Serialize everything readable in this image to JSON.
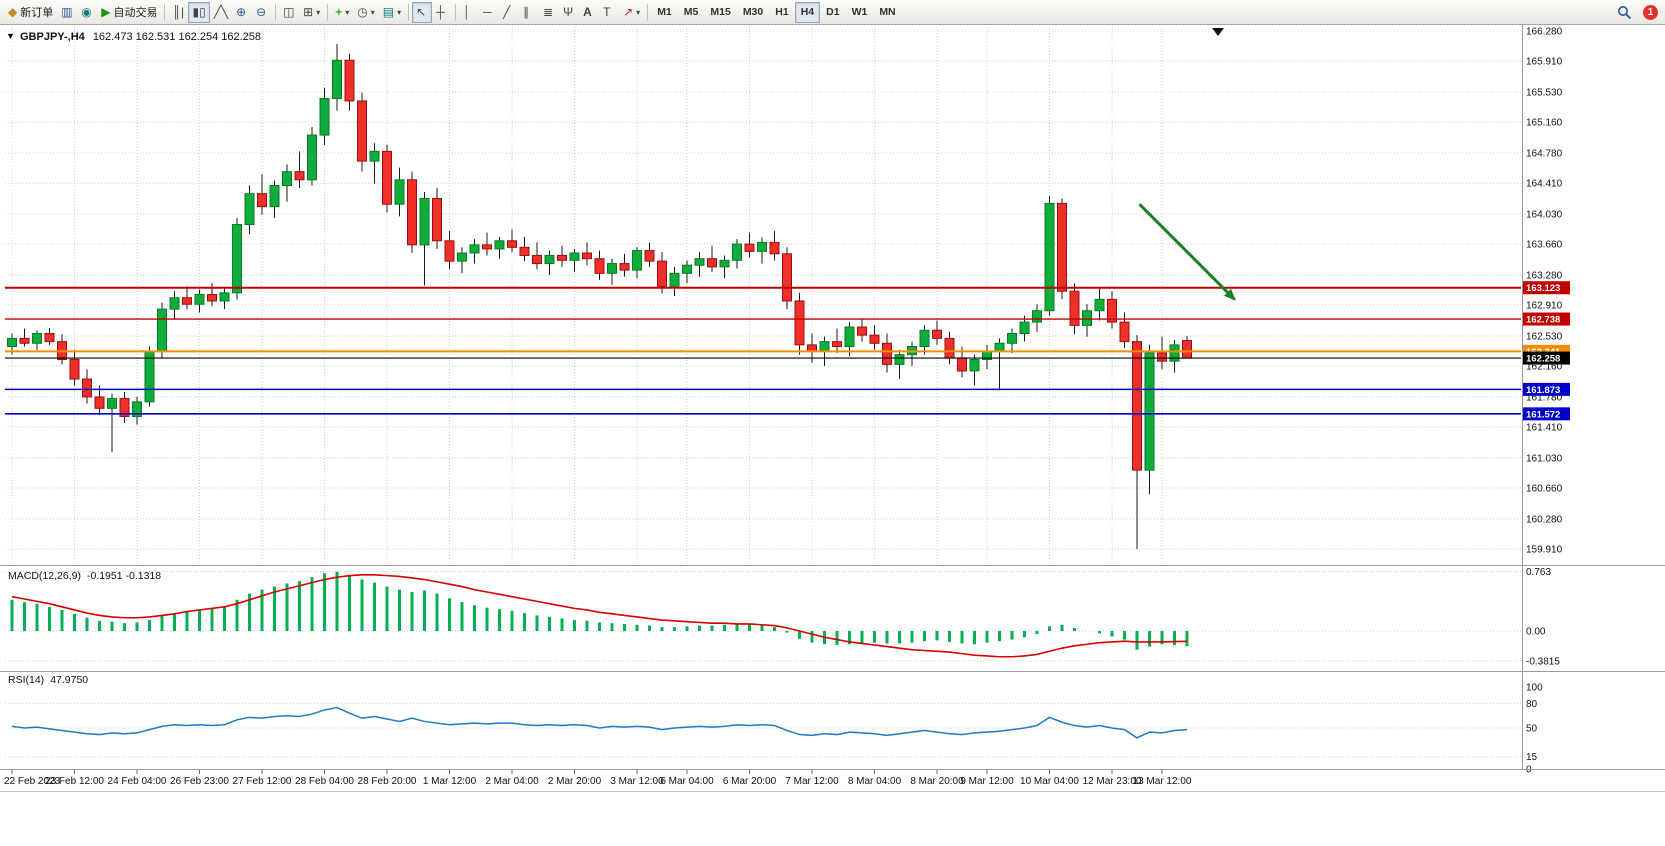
{
  "toolbar": {
    "new_order_label": "新订单",
    "autotrading_label": "自动交易",
    "timeframes": [
      "M1",
      "M5",
      "M15",
      "M30",
      "H1",
      "H4",
      "D1",
      "W1",
      "MN"
    ],
    "active_timeframe": "H4",
    "badge": "1"
  },
  "icons": {
    "caret-down": "▼",
    "dropdown": "▾",
    "coin": "◆",
    "chart-window": "▥",
    "terminal": "◉",
    "play": "▶",
    "bar-chart": "║|",
    "candlestick": "▮▯",
    "line-chart": "╱╲",
    "zoom-in": "⊕",
    "zoom-out": "⊖",
    "tile-windows": "◫",
    "new-chart": "⊞",
    "indicators": "+",
    "periods": "◷",
    "templates": "▤",
    "cursor": "↖",
    "crosshair": "┼",
    "vertical-line": "│",
    "horizontal-line": "─",
    "trendline": "╱",
    "channel": "∥",
    "fibonacci": "≣",
    "pitchfork": "Ψ",
    "text": "A",
    "text-label": "T",
    "arrows": "↗"
  },
  "chart": {
    "symbol_period": "GBPJPY-,H4",
    "quote_text": "162.473 162.531 162.254 162.258"
  },
  "chart_data": {
    "type": "candlestick",
    "symbol": "GBPJPY-",
    "timeframe": "H4",
    "ohlc_current": {
      "open": 162.473,
      "high": 162.531,
      "low": 162.254,
      "close": 162.258
    },
    "ylim": [
      159.91,
      166.28
    ],
    "price_axis_ticks": [
      "166.280",
      "165.910",
      "165.530",
      "165.160",
      "164.780",
      "164.410",
      "164.030",
      "163.660",
      "163.280",
      "162.910",
      "162.530",
      "162.160",
      "161.780",
      "161.410",
      "161.030",
      "160.660",
      "160.280",
      "159.910"
    ],
    "colors": {
      "up": "#0fae3c",
      "up_border": "#067a26",
      "down": "#ee2f2a",
      "down_border": "#9c0d0d",
      "wick": "#1a1a1a"
    },
    "candles": [
      [
        162.4,
        162.56,
        162.3,
        162.5
      ],
      [
        162.5,
        162.62,
        162.4,
        162.44
      ],
      [
        162.44,
        162.6,
        162.36,
        162.56
      ],
      [
        162.56,
        162.63,
        162.42,
        162.46
      ],
      [
        162.46,
        162.55,
        162.18,
        162.24
      ],
      [
        162.24,
        162.36,
        161.92,
        162.0
      ],
      [
        162.0,
        162.12,
        161.7,
        161.78
      ],
      [
        161.78,
        161.92,
        161.56,
        161.64
      ],
      [
        161.64,
        161.82,
        161.1,
        161.76
      ],
      [
        161.76,
        161.84,
        161.46,
        161.54
      ],
      [
        161.54,
        161.78,
        161.44,
        161.72
      ],
      [
        161.72,
        162.4,
        161.66,
        162.34
      ],
      [
        162.34,
        162.94,
        162.26,
        162.86
      ],
      [
        162.86,
        163.08,
        162.74,
        163.0
      ],
      [
        163.0,
        163.14,
        162.86,
        162.92
      ],
      [
        162.92,
        163.1,
        162.82,
        163.04
      ],
      [
        163.04,
        163.18,
        162.9,
        162.96
      ],
      [
        162.96,
        163.12,
        162.86,
        163.06
      ],
      [
        163.06,
        163.98,
        162.98,
        163.9
      ],
      [
        163.9,
        164.38,
        163.78,
        164.28
      ],
      [
        164.28,
        164.52,
        164.02,
        164.12
      ],
      [
        164.12,
        164.44,
        163.98,
        164.38
      ],
      [
        164.38,
        164.64,
        164.18,
        164.55
      ],
      [
        164.55,
        164.8,
        164.35,
        164.45
      ],
      [
        164.45,
        165.1,
        164.38,
        165.0
      ],
      [
        165.0,
        165.58,
        164.88,
        165.45
      ],
      [
        165.45,
        166.12,
        165.3,
        165.92
      ],
      [
        165.92,
        166.0,
        165.3,
        165.42
      ],
      [
        165.42,
        165.52,
        164.55,
        164.68
      ],
      [
        164.68,
        164.9,
        164.4,
        164.8
      ],
      [
        164.8,
        164.88,
        164.05,
        164.15
      ],
      [
        164.15,
        164.6,
        164.0,
        164.45
      ],
      [
        164.45,
        164.55,
        163.55,
        163.65
      ],
      [
        163.65,
        164.3,
        163.15,
        164.22
      ],
      [
        164.22,
        164.35,
        163.6,
        163.7
      ],
      [
        163.7,
        163.82,
        163.35,
        163.45
      ],
      [
        163.45,
        163.62,
        163.3,
        163.55
      ],
      [
        163.55,
        163.72,
        163.42,
        163.65
      ],
      [
        163.65,
        163.8,
        163.52,
        163.6
      ],
      [
        163.6,
        163.75,
        163.48,
        163.7
      ],
      [
        163.7,
        163.84,
        163.56,
        163.62
      ],
      [
        163.62,
        163.75,
        163.45,
        163.52
      ],
      [
        163.52,
        163.68,
        163.35,
        163.42
      ],
      [
        163.42,
        163.58,
        163.28,
        163.52
      ],
      [
        163.52,
        163.64,
        163.38,
        163.46
      ],
      [
        163.46,
        163.6,
        163.32,
        163.55
      ],
      [
        163.55,
        163.68,
        163.4,
        163.48
      ],
      [
        163.48,
        163.58,
        163.22,
        163.3
      ],
      [
        163.3,
        163.48,
        163.16,
        163.42
      ],
      [
        163.42,
        163.54,
        163.26,
        163.34
      ],
      [
        163.34,
        163.62,
        163.24,
        163.58
      ],
      [
        163.58,
        163.68,
        163.38,
        163.45
      ],
      [
        163.45,
        163.56,
        163.05,
        163.14
      ],
      [
        163.14,
        163.38,
        163.02,
        163.3
      ],
      [
        163.3,
        163.46,
        163.18,
        163.4
      ],
      [
        163.4,
        163.56,
        163.26,
        163.48
      ],
      [
        163.48,
        163.64,
        163.32,
        163.38
      ],
      [
        163.38,
        163.52,
        163.24,
        163.46
      ],
      [
        163.46,
        163.72,
        163.36,
        163.66
      ],
      [
        163.66,
        163.8,
        163.5,
        163.57
      ],
      [
        163.57,
        163.74,
        163.42,
        163.68
      ],
      [
        163.68,
        163.82,
        163.46,
        163.54
      ],
      [
        163.54,
        163.62,
        162.86,
        162.96
      ],
      [
        162.96,
        163.06,
        162.3,
        162.42
      ],
      [
        162.42,
        162.56,
        162.2,
        162.34
      ],
      [
        162.34,
        162.52,
        162.16,
        162.46
      ],
      [
        162.46,
        162.62,
        162.32,
        162.4
      ],
      [
        162.4,
        162.7,
        162.28,
        162.64
      ],
      [
        162.64,
        162.74,
        162.46,
        162.54
      ],
      [
        162.54,
        162.66,
        162.36,
        162.44
      ],
      [
        162.44,
        162.56,
        162.08,
        162.18
      ],
      [
        162.18,
        162.36,
        162.0,
        162.3
      ],
      [
        162.3,
        162.46,
        162.16,
        162.4
      ],
      [
        162.4,
        162.66,
        162.3,
        162.6
      ],
      [
        162.6,
        162.72,
        162.42,
        162.5
      ],
      [
        162.5,
        162.58,
        162.18,
        162.26
      ],
      [
        162.26,
        162.4,
        162.02,
        162.1
      ],
      [
        162.1,
        162.3,
        161.92,
        162.24
      ],
      [
        162.24,
        162.42,
        162.12,
        162.34
      ],
      [
        162.34,
        162.5,
        161.86,
        162.44
      ],
      [
        162.44,
        162.62,
        162.32,
        162.56
      ],
      [
        162.56,
        162.78,
        162.46,
        162.7
      ],
      [
        162.7,
        162.92,
        162.58,
        162.84
      ],
      [
        162.84,
        164.25,
        162.78,
        164.16
      ],
      [
        164.16,
        164.22,
        162.98,
        163.08
      ],
      [
        163.08,
        163.18,
        162.55,
        162.66
      ],
      [
        162.66,
        162.92,
        162.52,
        162.84
      ],
      [
        162.84,
        163.12,
        162.72,
        162.98
      ],
      [
        162.98,
        163.08,
        162.62,
        162.7
      ],
      [
        162.7,
        162.82,
        162.38,
        162.46
      ],
      [
        162.46,
        162.54,
        159.91,
        160.88
      ],
      [
        160.88,
        162.42,
        160.58,
        162.32
      ],
      [
        162.32,
        162.52,
        162.12,
        162.22
      ],
      [
        162.22,
        162.48,
        162.08,
        162.42
      ],
      [
        162.473,
        162.531,
        162.254,
        162.258
      ]
    ],
    "hlines": [
      {
        "price": 163.123,
        "label": "163.123",
        "color": "#c00000",
        "width": 2
      },
      {
        "price": 162.738,
        "label": "162.738",
        "color": "#c00000",
        "width": 1.4
      },
      {
        "price": 162.341,
        "label": "162.341",
        "color": "#ff8c00",
        "width": 2
      },
      {
        "price": 162.258,
        "label": "162.258",
        "color": "#000000",
        "width": 1.2
      },
      {
        "price": 161.873,
        "label": "161.873",
        "color": "#0000cc",
        "width": 1.6
      },
      {
        "price": 161.572,
        "label": "161.572",
        "color": "#0000cc",
        "width": 1.6
      }
    ],
    "date_labels": [
      {
        "index": 0,
        "text": "22 Feb 2023"
      },
      {
        "index": 5,
        "text": "23 Feb 12:00"
      },
      {
        "index": 10,
        "text": "24 Feb 04:00"
      },
      {
        "index": 15,
        "text": "26 Feb 23:00"
      },
      {
        "index": 20,
        "text": "27 Feb 12:00"
      },
      {
        "index": 25,
        "text": "28 Feb 04:00"
      },
      {
        "index": 30,
        "text": "28 Feb 20:00"
      },
      {
        "index": 35,
        "text": "1 Mar 12:00"
      },
      {
        "index": 40,
        "text": "2 Mar 04:00"
      },
      {
        "index": 45,
        "text": "2 Mar 20:00"
      },
      {
        "index": 50,
        "text": "3 Mar 12:00"
      },
      {
        "index": 54,
        "text": "6 Mar 04:00"
      },
      {
        "index": 59,
        "text": "6 Mar 20:00"
      },
      {
        "index": 64,
        "text": "7 Mar 12:00"
      },
      {
        "index": 69,
        "text": "8 Mar 04:00"
      },
      {
        "index": 74,
        "text": "8 Mar 20:00"
      },
      {
        "index": 78,
        "text": "9 Mar 12:00"
      },
      {
        "index": 83,
        "text": "10 Mar 04:00"
      },
      {
        "index": 88,
        "text": "12 Mar 23:00"
      },
      {
        "index": 92,
        "text": "13 Mar 12:00"
      }
    ],
    "arrow": {
      "from": {
        "index": 90.2,
        "price": 164.15
      },
      "to": {
        "index": 97.8,
        "price": 162.98
      },
      "color": "#1e7d1e"
    },
    "macd": {
      "label": "MACD(12,26,9)",
      "values_text": "-0.1951 -0.1318",
      "axis_ticks": [
        "0.763",
        "0.00",
        "-0.3815"
      ],
      "hist_color": "#00b050",
      "signal_color": "#d90000",
      "histogram": [
        0.4,
        0.37,
        0.35,
        0.31,
        0.27,
        0.22,
        0.17,
        0.13,
        0.12,
        0.1,
        0.11,
        0.14,
        0.19,
        0.23,
        0.26,
        0.28,
        0.3,
        0.32,
        0.4,
        0.48,
        0.53,
        0.57,
        0.61,
        0.64,
        0.69,
        0.74,
        0.76,
        0.72,
        0.66,
        0.62,
        0.57,
        0.53,
        0.5,
        0.52,
        0.48,
        0.42,
        0.37,
        0.33,
        0.3,
        0.28,
        0.26,
        0.23,
        0.2,
        0.18,
        0.16,
        0.14,
        0.13,
        0.11,
        0.1,
        0.09,
        0.08,
        0.07,
        0.05,
        0.05,
        0.06,
        0.07,
        0.07,
        0.08,
        0.09,
        0.09,
        0.08,
        0.05,
        -0.02,
        -0.1,
        -0.15,
        -0.17,
        -0.18,
        -0.17,
        -0.16,
        -0.15,
        -0.16,
        -0.16,
        -0.15,
        -0.13,
        -0.12,
        -0.14,
        -0.16,
        -0.17,
        -0.15,
        -0.13,
        -0.11,
        -0.08,
        -0.04,
        0.06,
        0.08,
        0.04,
        0.0,
        -0.03,
        -0.07,
        -0.11,
        -0.24,
        -0.2,
        -0.17,
        -0.18,
        -0.1951
      ],
      "signal": [
        0.44,
        0.41,
        0.38,
        0.35,
        0.31,
        0.27,
        0.23,
        0.2,
        0.18,
        0.17,
        0.17,
        0.18,
        0.2,
        0.22,
        0.25,
        0.27,
        0.29,
        0.31,
        0.35,
        0.4,
        0.45,
        0.5,
        0.54,
        0.58,
        0.62,
        0.66,
        0.69,
        0.71,
        0.72,
        0.72,
        0.71,
        0.7,
        0.68,
        0.66,
        0.63,
        0.6,
        0.57,
        0.53,
        0.5,
        0.47,
        0.44,
        0.41,
        0.38,
        0.35,
        0.32,
        0.29,
        0.27,
        0.24,
        0.22,
        0.2,
        0.18,
        0.16,
        0.14,
        0.13,
        0.12,
        0.11,
        0.1,
        0.1,
        0.09,
        0.09,
        0.08,
        0.07,
        0.04,
        0.0,
        -0.04,
        -0.08,
        -0.11,
        -0.14,
        -0.16,
        -0.18,
        -0.2,
        -0.22,
        -0.24,
        -0.25,
        -0.26,
        -0.27,
        -0.29,
        -0.31,
        -0.32,
        -0.33,
        -0.33,
        -0.32,
        -0.3,
        -0.26,
        -0.22,
        -0.19,
        -0.17,
        -0.15,
        -0.14,
        -0.13,
        -0.14,
        -0.14,
        -0.14,
        -0.135,
        -0.1318
      ]
    },
    "rsi": {
      "label": "RSI(14)",
      "value_text": "47.9750",
      "color": "#2079c7",
      "levels": [
        80,
        50,
        15
      ],
      "axis_ticks": [
        "100",
        "80",
        "50",
        "15",
        "0"
      ],
      "values": [
        52,
        50,
        51,
        49,
        47,
        45,
        43,
        42,
        44,
        43,
        44,
        48,
        52,
        54,
        53,
        54,
        53,
        54,
        60,
        63,
        62,
        64,
        65,
        64,
        67,
        72,
        75,
        68,
        62,
        64,
        61,
        58,
        62,
        58,
        56,
        54,
        55,
        56,
        55,
        56,
        56,
        54,
        53,
        54,
        53,
        54,
        53,
        50,
        52,
        51,
        52,
        51,
        48,
        50,
        51,
        52,
        51,
        52,
        54,
        53,
        54,
        53,
        47,
        42,
        41,
        43,
        42,
        45,
        44,
        43,
        41,
        43,
        45,
        47,
        45,
        43,
        42,
        44,
        45,
        46,
        48,
        50,
        53,
        63,
        57,
        53,
        51,
        53,
        50,
        48,
        38,
        45,
        44,
        47,
        47.975
      ]
    }
  }
}
